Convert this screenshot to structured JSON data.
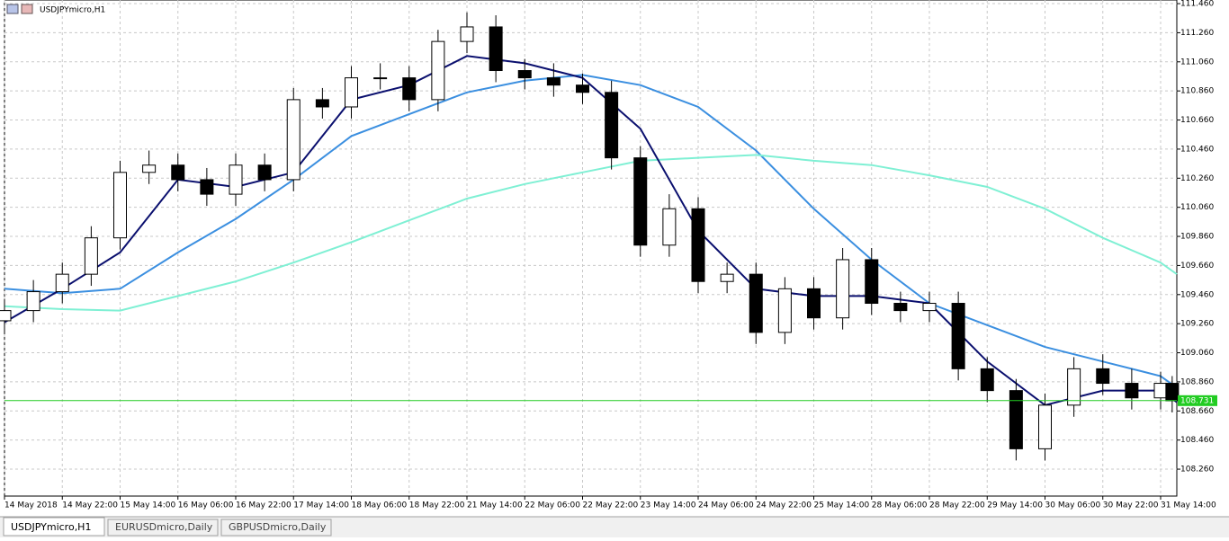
{
  "window_title": "USDJPYmicro,H1",
  "tabs": [
    "USDJPYmicro,H1",
    "EURUSDmicro,Daily",
    "GBPUSDmicro,Daily"
  ],
  "active_tab": 0,
  "chart_data": {
    "type": "candlestick",
    "xlim": [
      0,
      20.28
    ],
    "xticks": [
      {
        "value": 0,
        "label": "14 May 2018"
      },
      {
        "value": 1,
        "label": "14 May 22:00"
      },
      {
        "value": 2,
        "label": "15 May 14:00"
      },
      {
        "value": 3,
        "label": "16 May 06:00"
      },
      {
        "value": 4,
        "label": "16 May 22:00"
      },
      {
        "value": 5,
        "label": "17 May 14:00"
      },
      {
        "value": 6,
        "label": "18 May 06:00"
      },
      {
        "value": 7,
        "label": "18 May 22:00"
      },
      {
        "value": 8,
        "label": "21 May 14:00"
      },
      {
        "value": 9,
        "label": "22 May 06:00"
      },
      {
        "value": 10,
        "label": "22 May 22:00"
      },
      {
        "value": 11,
        "label": "23 May 14:00"
      },
      {
        "value": 12,
        "label": "24 May 06:00"
      },
      {
        "value": 13,
        "label": "24 May 22:00"
      },
      {
        "value": 14,
        "label": "25 May 14:00"
      },
      {
        "value": 15,
        "label": "28 May 06:00"
      },
      {
        "value": 16,
        "label": "28 May 22:00"
      },
      {
        "value": 17,
        "label": "29 May 14:00"
      },
      {
        "value": 18,
        "label": "30 May 06:00"
      },
      {
        "value": 19,
        "label": "30 May 22:00"
      },
      {
        "value": 20,
        "label": "31 May 14:00"
      }
    ],
    "ylim": [
      108.075,
      111.485
    ],
    "yticks": [
      {
        "value": 111.46,
        "label": "111.460"
      },
      {
        "value": 111.26,
        "label": "111.260"
      },
      {
        "value": 111.06,
        "label": "111.060"
      },
      {
        "value": 110.86,
        "label": "110.860"
      },
      {
        "value": 110.66,
        "label": "110.660"
      },
      {
        "value": 110.46,
        "label": "110.460"
      },
      {
        "value": 110.26,
        "label": "110.260"
      },
      {
        "value": 110.06,
        "label": "110.060"
      },
      {
        "value": 109.86,
        "label": "109.860"
      },
      {
        "value": 109.66,
        "label": "109.660"
      },
      {
        "value": 109.46,
        "label": "109.460"
      },
      {
        "value": 109.26,
        "label": "109.260"
      },
      {
        "value": 109.06,
        "label": "109.060"
      },
      {
        "value": 108.86,
        "label": "108.860"
      },
      {
        "value": 108.66,
        "label": "108.660"
      },
      {
        "value": 108.46,
        "label": "108.460"
      },
      {
        "value": 108.26,
        "label": "108.260"
      }
    ],
    "grid": true,
    "x": [
      0,
      0.5,
      1,
      1.5,
      2,
      2.5,
      3,
      3.5,
      4,
      4.5,
      5,
      5.5,
      6,
      6.5,
      7,
      7.5,
      8,
      8.5,
      9,
      9.5,
      10,
      10.5,
      11,
      11.5,
      12,
      12.5,
      13,
      13.5,
      14,
      14.5,
      15,
      15.5,
      16,
      16.5,
      17,
      17.5,
      18,
      18.5,
      19,
      19.5,
      20,
      20.2
    ],
    "open": [
      109.28,
      109.35,
      109.48,
      109.6,
      109.85,
      110.3,
      110.35,
      110.25,
      110.15,
      110.35,
      110.25,
      110.8,
      110.75,
      110.95,
      110.95,
      110.8,
      111.2,
      111.3,
      111.0,
      110.95,
      110.9,
      110.85,
      110.4,
      109.8,
      110.05,
      109.55,
      109.6,
      109.2,
      109.5,
      109.3,
      109.7,
      109.4,
      109.35,
      109.4,
      108.95,
      108.8,
      108.4,
      108.7,
      108.95,
      108.85,
      108.75,
      108.85
    ],
    "high": [
      109.43,
      109.56,
      109.68,
      109.93,
      110.38,
      110.45,
      110.43,
      110.33,
      110.43,
      110.43,
      110.88,
      110.88,
      111.03,
      111.05,
      111.03,
      111.28,
      111.4,
      111.38,
      111.08,
      111.05,
      110.98,
      110.93,
      110.48,
      110.15,
      110.13,
      109.68,
      109.68,
      109.58,
      109.58,
      109.78,
      109.78,
      109.48,
      109.48,
      109.48,
      109.03,
      108.88,
      108.78,
      109.03,
      109.05,
      108.95,
      108.93,
      108.9
    ],
    "low": [
      109.2,
      109.27,
      109.4,
      109.52,
      109.77,
      110.22,
      110.17,
      110.07,
      110.07,
      110.17,
      110.17,
      110.67,
      110.67,
      110.87,
      110.72,
      110.72,
      111.12,
      110.92,
      110.87,
      110.82,
      110.77,
      110.32,
      109.72,
      109.72,
      109.47,
      109.47,
      109.12,
      109.12,
      109.22,
      109.22,
      109.32,
      109.27,
      109.27,
      108.87,
      108.72,
      108.32,
      108.32,
      108.62,
      108.77,
      108.67,
      108.67,
      108.65
    ],
    "close": [
      109.35,
      109.48,
      109.6,
      109.85,
      110.3,
      110.35,
      110.25,
      110.15,
      110.35,
      110.25,
      110.8,
      110.75,
      110.95,
      110.95,
      110.8,
      111.2,
      111.3,
      111.0,
      110.95,
      110.9,
      110.85,
      110.4,
      109.8,
      110.05,
      109.55,
      109.6,
      109.2,
      109.5,
      109.3,
      109.7,
      109.4,
      109.35,
      109.4,
      108.95,
      108.8,
      108.4,
      108.7,
      108.95,
      108.85,
      108.75,
      108.85,
      108.73
    ],
    "bull_color": "#ffffff",
    "bear_color": "#000000",
    "candle_outline": "#000000",
    "lines": [
      {
        "color": "#3b8fe0",
        "x": [
          0,
          1,
          2,
          3,
          4,
          5,
          6,
          7,
          8,
          9,
          10,
          11,
          12,
          13,
          14,
          15,
          16,
          17,
          18,
          19,
          20,
          20.28
        ],
        "values": [
          109.5,
          109.47,
          109.5,
          109.75,
          109.98,
          110.25,
          110.55,
          110.7,
          110.85,
          110.93,
          110.97,
          110.9,
          110.75,
          110.45,
          110.05,
          109.7,
          109.4,
          109.25,
          109.1,
          109.0,
          108.9,
          108.82
        ]
      },
      {
        "color": "#7ff0d4",
        "x": [
          0,
          1,
          2,
          3,
          4,
          5,
          6,
          7,
          8,
          9,
          10,
          11,
          12,
          13,
          14,
          15,
          16,
          17,
          18,
          19,
          20,
          20.28
        ],
        "values": [
          109.38,
          109.36,
          109.35,
          109.45,
          109.55,
          109.68,
          109.82,
          109.97,
          110.12,
          110.22,
          110.3,
          110.38,
          110.4,
          110.42,
          110.38,
          110.35,
          110.28,
          110.2,
          110.05,
          109.85,
          109.68,
          109.6
        ]
      },
      {
        "color": "#0a0f6e",
        "x": [
          0,
          1,
          2,
          3,
          4,
          5,
          6,
          7,
          8,
          9,
          10,
          11,
          12,
          13,
          14,
          15,
          16,
          17,
          18,
          19,
          20,
          20.28
        ],
        "values": [
          109.27,
          109.5,
          109.75,
          110.25,
          110.2,
          110.3,
          110.8,
          110.9,
          111.1,
          111.05,
          110.95,
          110.6,
          109.9,
          109.5,
          109.45,
          109.45,
          109.4,
          109.0,
          108.7,
          108.8,
          108.8,
          108.72
        ]
      }
    ],
    "current_price": 108.731,
    "current_price_color": "#22cc22"
  }
}
